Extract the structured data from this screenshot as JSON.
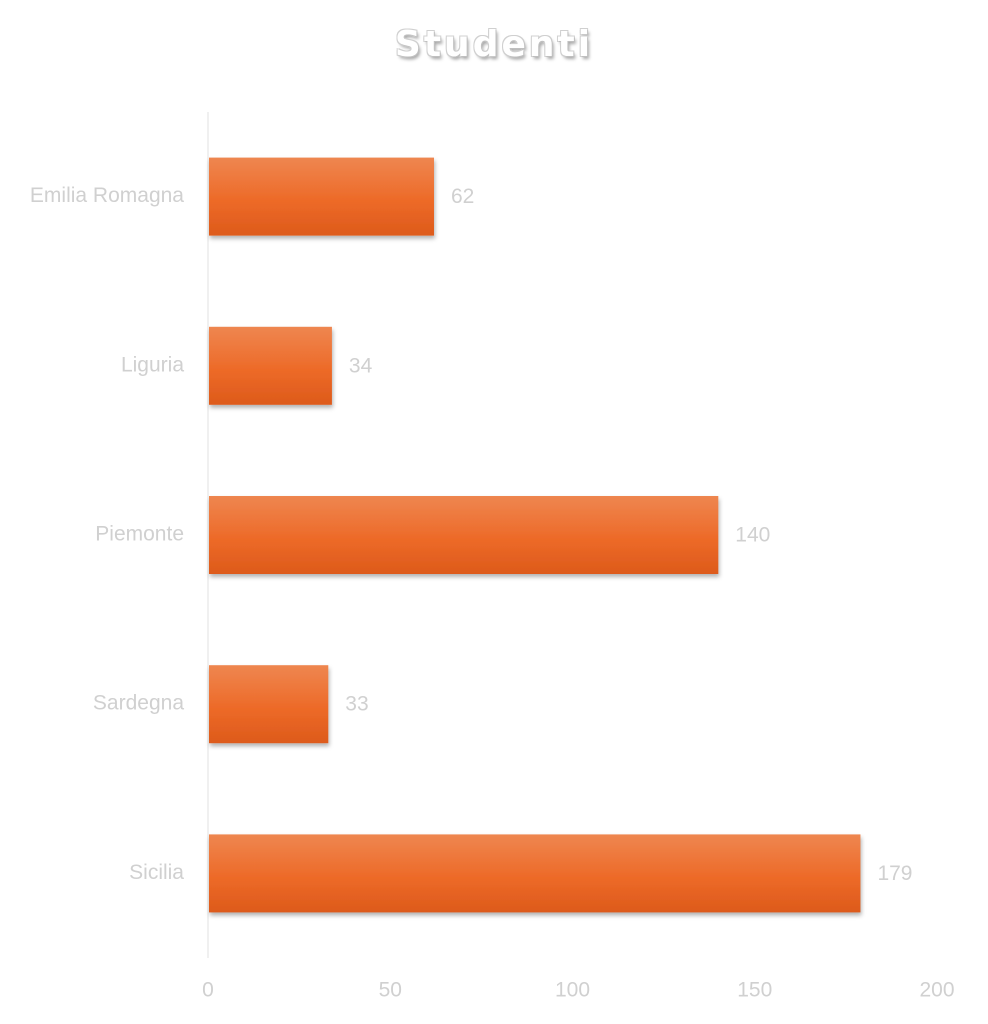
{
  "chart_data": {
    "type": "bar",
    "orientation": "horizontal",
    "title": "Studenti",
    "categories": [
      "Emilia Romagna",
      "Liguria",
      "Piemonte",
      "Sardegna",
      "Sicilia"
    ],
    "values": [
      62,
      34,
      140,
      33,
      179
    ],
    "xlim": [
      0,
      200
    ],
    "xticks": [
      0,
      50,
      100,
      150,
      200
    ],
    "xlabel": "",
    "ylabel": "",
    "grid": false,
    "legend": "none",
    "data_labels": true,
    "bar_color": "#ED6A28",
    "bar_color_light": "#EE8650",
    "bar_color_dark": "#DD5A1B"
  }
}
